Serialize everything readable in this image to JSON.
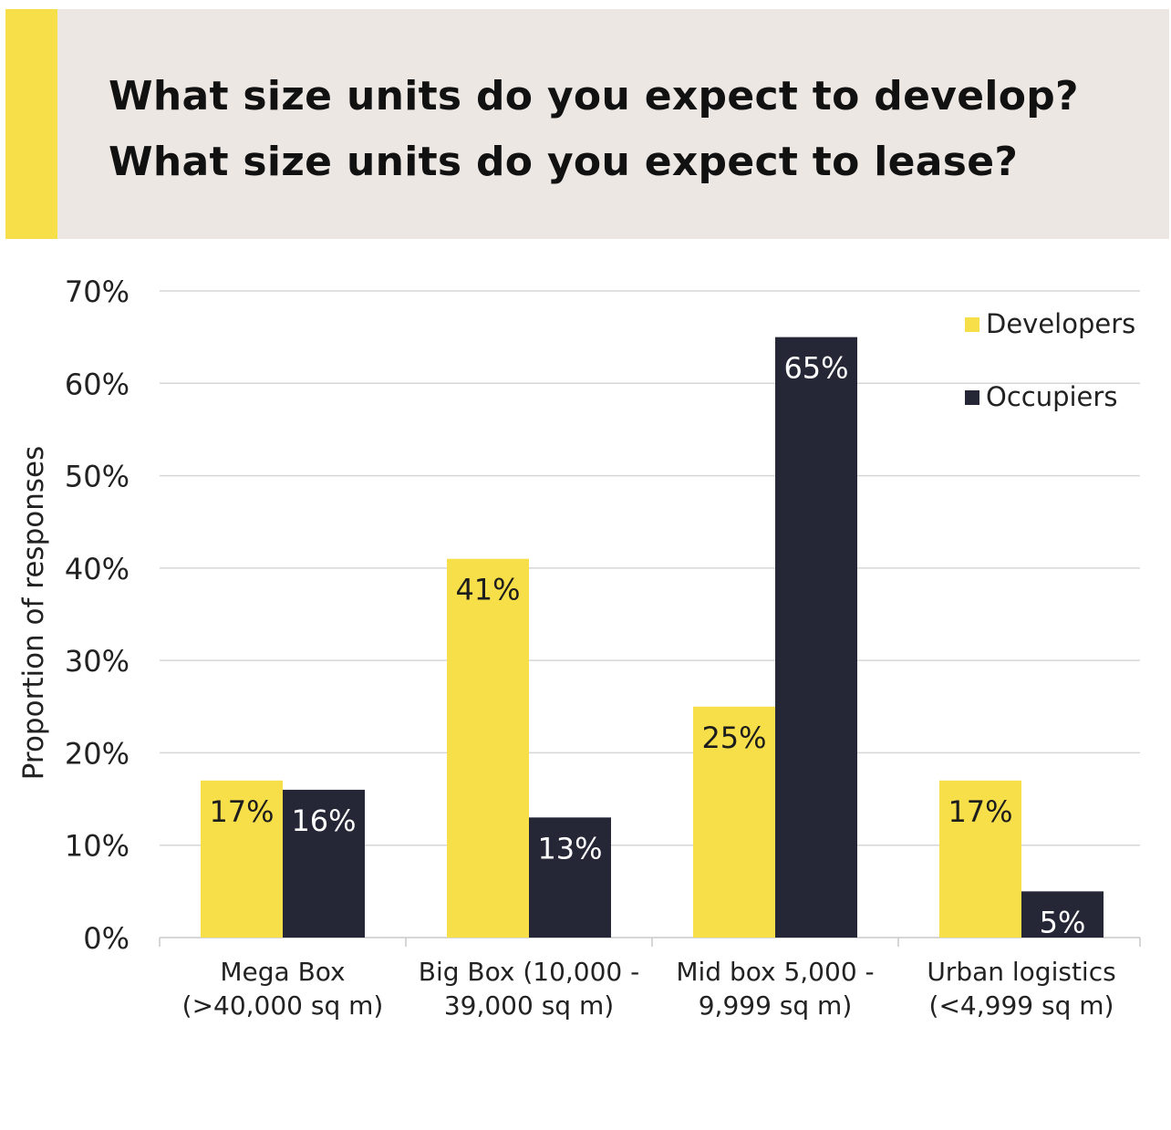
{
  "header": {
    "title_line_1": "What size units do you expect to develop?",
    "title_line_2": "What size units do you expect to lease?"
  },
  "colors": {
    "header_bg": "#ece7e3",
    "accent_yellow": "#f7df4a",
    "developers": "#f7df4a",
    "occupiers": "#252636",
    "grid": "#d6d6d6"
  },
  "chart_data": {
    "type": "bar",
    "title": "",
    "xlabel": "",
    "ylabel": "Proportion of responses",
    "ylim": [
      0,
      70
    ],
    "ytick_step": 10,
    "yticks": [
      "0%",
      "10%",
      "20%",
      "30%",
      "40%",
      "50%",
      "60%",
      "70%"
    ],
    "grid": true,
    "legend_position": "top-right",
    "categories": [
      [
        "Mega Box",
        "(>40,000 sq m)"
      ],
      [
        "Big Box (10,000 -",
        "39,000 sq m)"
      ],
      [
        "Mid box 5,000 -",
        "9,999 sq m)"
      ],
      [
        "Urban logistics",
        "(<4,999 sq m)"
      ]
    ],
    "series": [
      {
        "name": "Developers",
        "values": [
          17,
          41,
          25,
          17
        ],
        "labels": [
          "17%",
          "41%",
          "25%",
          "17%"
        ],
        "color": "#f7df4a",
        "label_color": "#1d1d1d"
      },
      {
        "name": "Occupiers",
        "values": [
          16,
          13,
          65,
          5
        ],
        "labels": [
          "16%",
          "13%",
          "65%",
          "5%"
        ],
        "color": "#252636",
        "label_color": "#ffffff"
      }
    ]
  }
}
